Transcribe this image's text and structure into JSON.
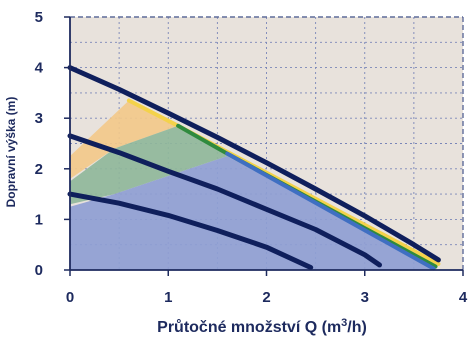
{
  "chart_data": {
    "type": "line",
    "title": "",
    "xlabel": "Průtočné množství Q (m",
    "xlabel_sup": "3",
    "xlabel_tail": "/h)",
    "ylabel": "Dopravní výška (m)",
    "xlim": [
      0,
      4
    ],
    "ylim": [
      0,
      5
    ],
    "x_ticks": [
      "0",
      "1",
      "2",
      "3",
      "4"
    ],
    "y_ticks": [
      "0",
      "1",
      "2",
      "3",
      "4",
      "5"
    ],
    "grid": true,
    "background_color": "#e8e2dc",
    "grid_color": "#7a86b8",
    "regions": [
      {
        "color": "#f2c98a",
        "points": [
          [
            0,
            1.75
          ],
          [
            0,
            2.25
          ],
          [
            0.6,
            3.35
          ],
          [
            1.1,
            2.85
          ],
          [
            0.45,
            2.4
          ],
          [
            0,
            1.8
          ]
        ]
      },
      {
        "color": "#8fb79a",
        "points": [
          [
            0,
            1.25
          ],
          [
            0,
            1.75
          ],
          [
            0.45,
            2.4
          ],
          [
            1.1,
            2.85
          ],
          [
            1.6,
            2.25
          ],
          [
            0.45,
            1.5
          ],
          [
            0,
            1.3
          ]
        ]
      },
      {
        "color": "#8e9ed2",
        "points": [
          [
            0,
            0
          ],
          [
            0,
            1.25
          ],
          [
            0.45,
            1.5
          ],
          [
            1.6,
            2.25
          ],
          [
            3.72,
            0.05
          ],
          [
            3.72,
            0
          ]
        ]
      }
    ],
    "accent_lines": [
      {
        "color": "#f4d24a",
        "points": [
          [
            0.6,
            3.35
          ],
          [
            1.1,
            2.85
          ],
          [
            3.75,
            0.12
          ]
        ]
      },
      {
        "color": "#2f8a3e",
        "points": [
          [
            1.1,
            2.85
          ],
          [
            1.6,
            2.3
          ],
          [
            3.72,
            0.07
          ]
        ]
      },
      {
        "color": "#3f6fc2",
        "points": [
          [
            1.6,
            2.3
          ],
          [
            3.7,
            0.03
          ]
        ]
      }
    ],
    "series": [
      {
        "color": "#0f1f5c",
        "x": [
          0,
          0.5,
          1,
          1.5,
          2,
          2.5,
          3,
          3.5,
          3.75
        ],
        "y": [
          4.0,
          3.57,
          3.1,
          2.62,
          2.12,
          1.6,
          1.07,
          0.5,
          0.2
        ]
      },
      {
        "color": "#0f1f5c",
        "x": [
          0,
          0.5,
          1,
          1.5,
          2,
          2.5,
          3,
          3.15
        ],
        "y": [
          2.65,
          2.32,
          1.95,
          1.6,
          1.2,
          0.8,
          0.3,
          0.1
        ]
      },
      {
        "color": "#0f1f5c",
        "x": [
          0,
          0.5,
          1,
          1.5,
          2,
          2.45
        ],
        "y": [
          1.5,
          1.32,
          1.08,
          0.78,
          0.45,
          0.05
        ]
      }
    ]
  }
}
